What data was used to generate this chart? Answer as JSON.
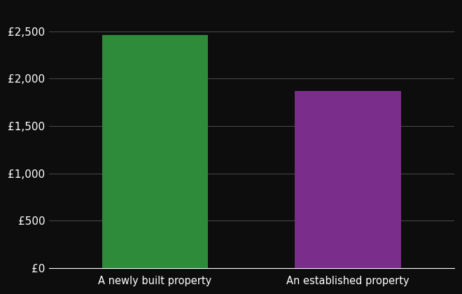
{
  "categories": [
    "A newly built property",
    "An established property"
  ],
  "values": [
    2460,
    1870
  ],
  "bar_colors": [
    "#2e8b3a",
    "#7b2d8b"
  ],
  "background_color": "#0d0d0d",
  "text_color": "#ffffff",
  "grid_color": "#555555",
  "ylim": [
    0,
    2750
  ],
  "yticks": [
    0,
    500,
    1000,
    1500,
    2000,
    2500
  ],
  "ytick_labels": [
    "£0",
    "£500",
    "£1,000",
    "£1,500",
    "£2,000",
    "£2,500"
  ],
  "tick_fontsize": 11,
  "xlabel_fontsize": 10.5
}
